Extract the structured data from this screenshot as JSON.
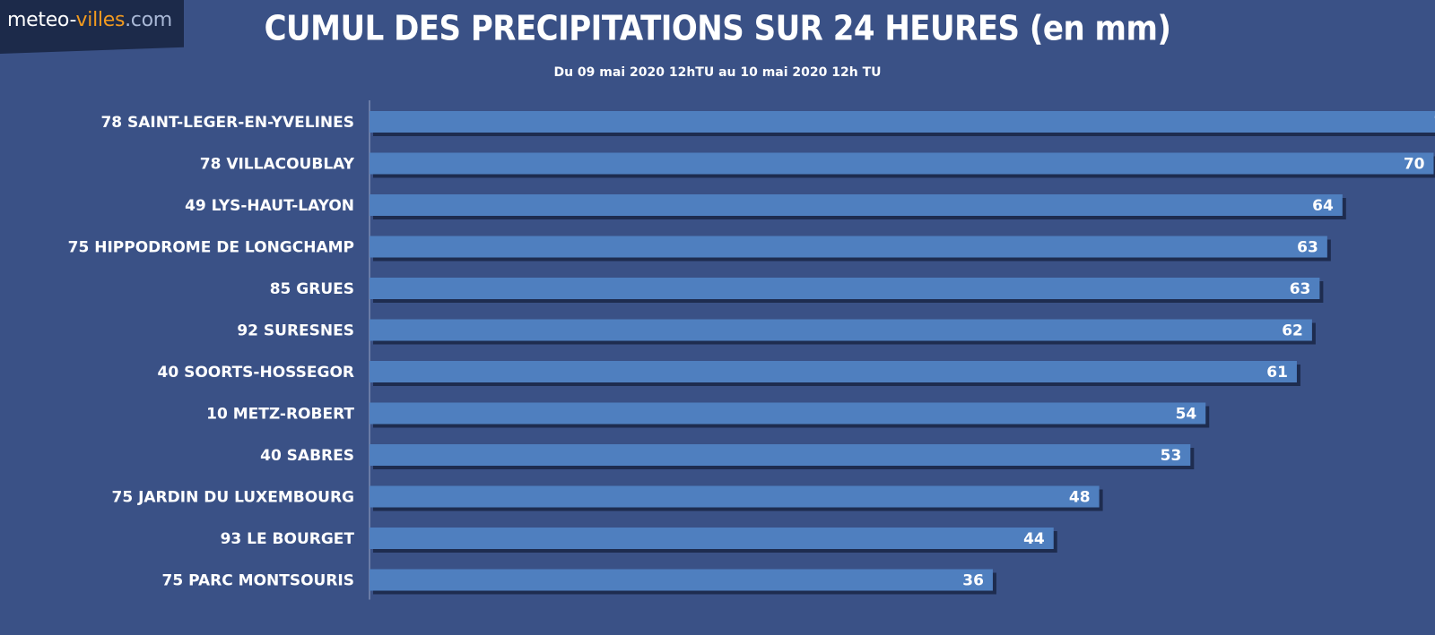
{
  "logo": {
    "part1": "meteo-",
    "part2": "villes",
    "part3": ".com"
  },
  "colors": {
    "background": "#3a5186",
    "bar": "#4f7fbf",
    "bar_shadow": "#1e2c4f",
    "text": "#ffffff"
  },
  "chart_data": {
    "type": "bar",
    "orientation": "horizontal",
    "title": "CUMUL DES PRECIPITATIONS SUR 24 HEURES (en mm)",
    "subtitle": "Du 09 mai 2020 12hTU au 10 mai 2020 12h TU",
    "xlabel": "",
    "ylabel": "",
    "xlim": [
      0,
      80
    ],
    "grid": false,
    "categories": [
      "78 SAINT-LEGER-EN-YVELINES",
      "78 VILLACOUBLAY",
      "49 LYS-HAUT-LAYON",
      "75 HIPPODROME DE LONGCHAMP",
      "85 GRUES",
      "92 SURESNES",
      "40 SOORTS-HOSSEGOR",
      "10 METZ-ROBERT",
      "40 SABRES",
      "75 JARDIN DU LUXEMBOURG",
      "93 LE BOURGET",
      "75 PARC MONTSOURIS"
    ],
    "values": [
      72,
      70,
      64,
      63,
      63,
      62,
      61,
      54,
      53,
      48,
      44,
      36
    ],
    "bar_lengths": [
      72,
      70,
      64,
      63,
      62.5,
      62,
      61,
      55,
      54,
      48,
      45,
      41
    ]
  }
}
